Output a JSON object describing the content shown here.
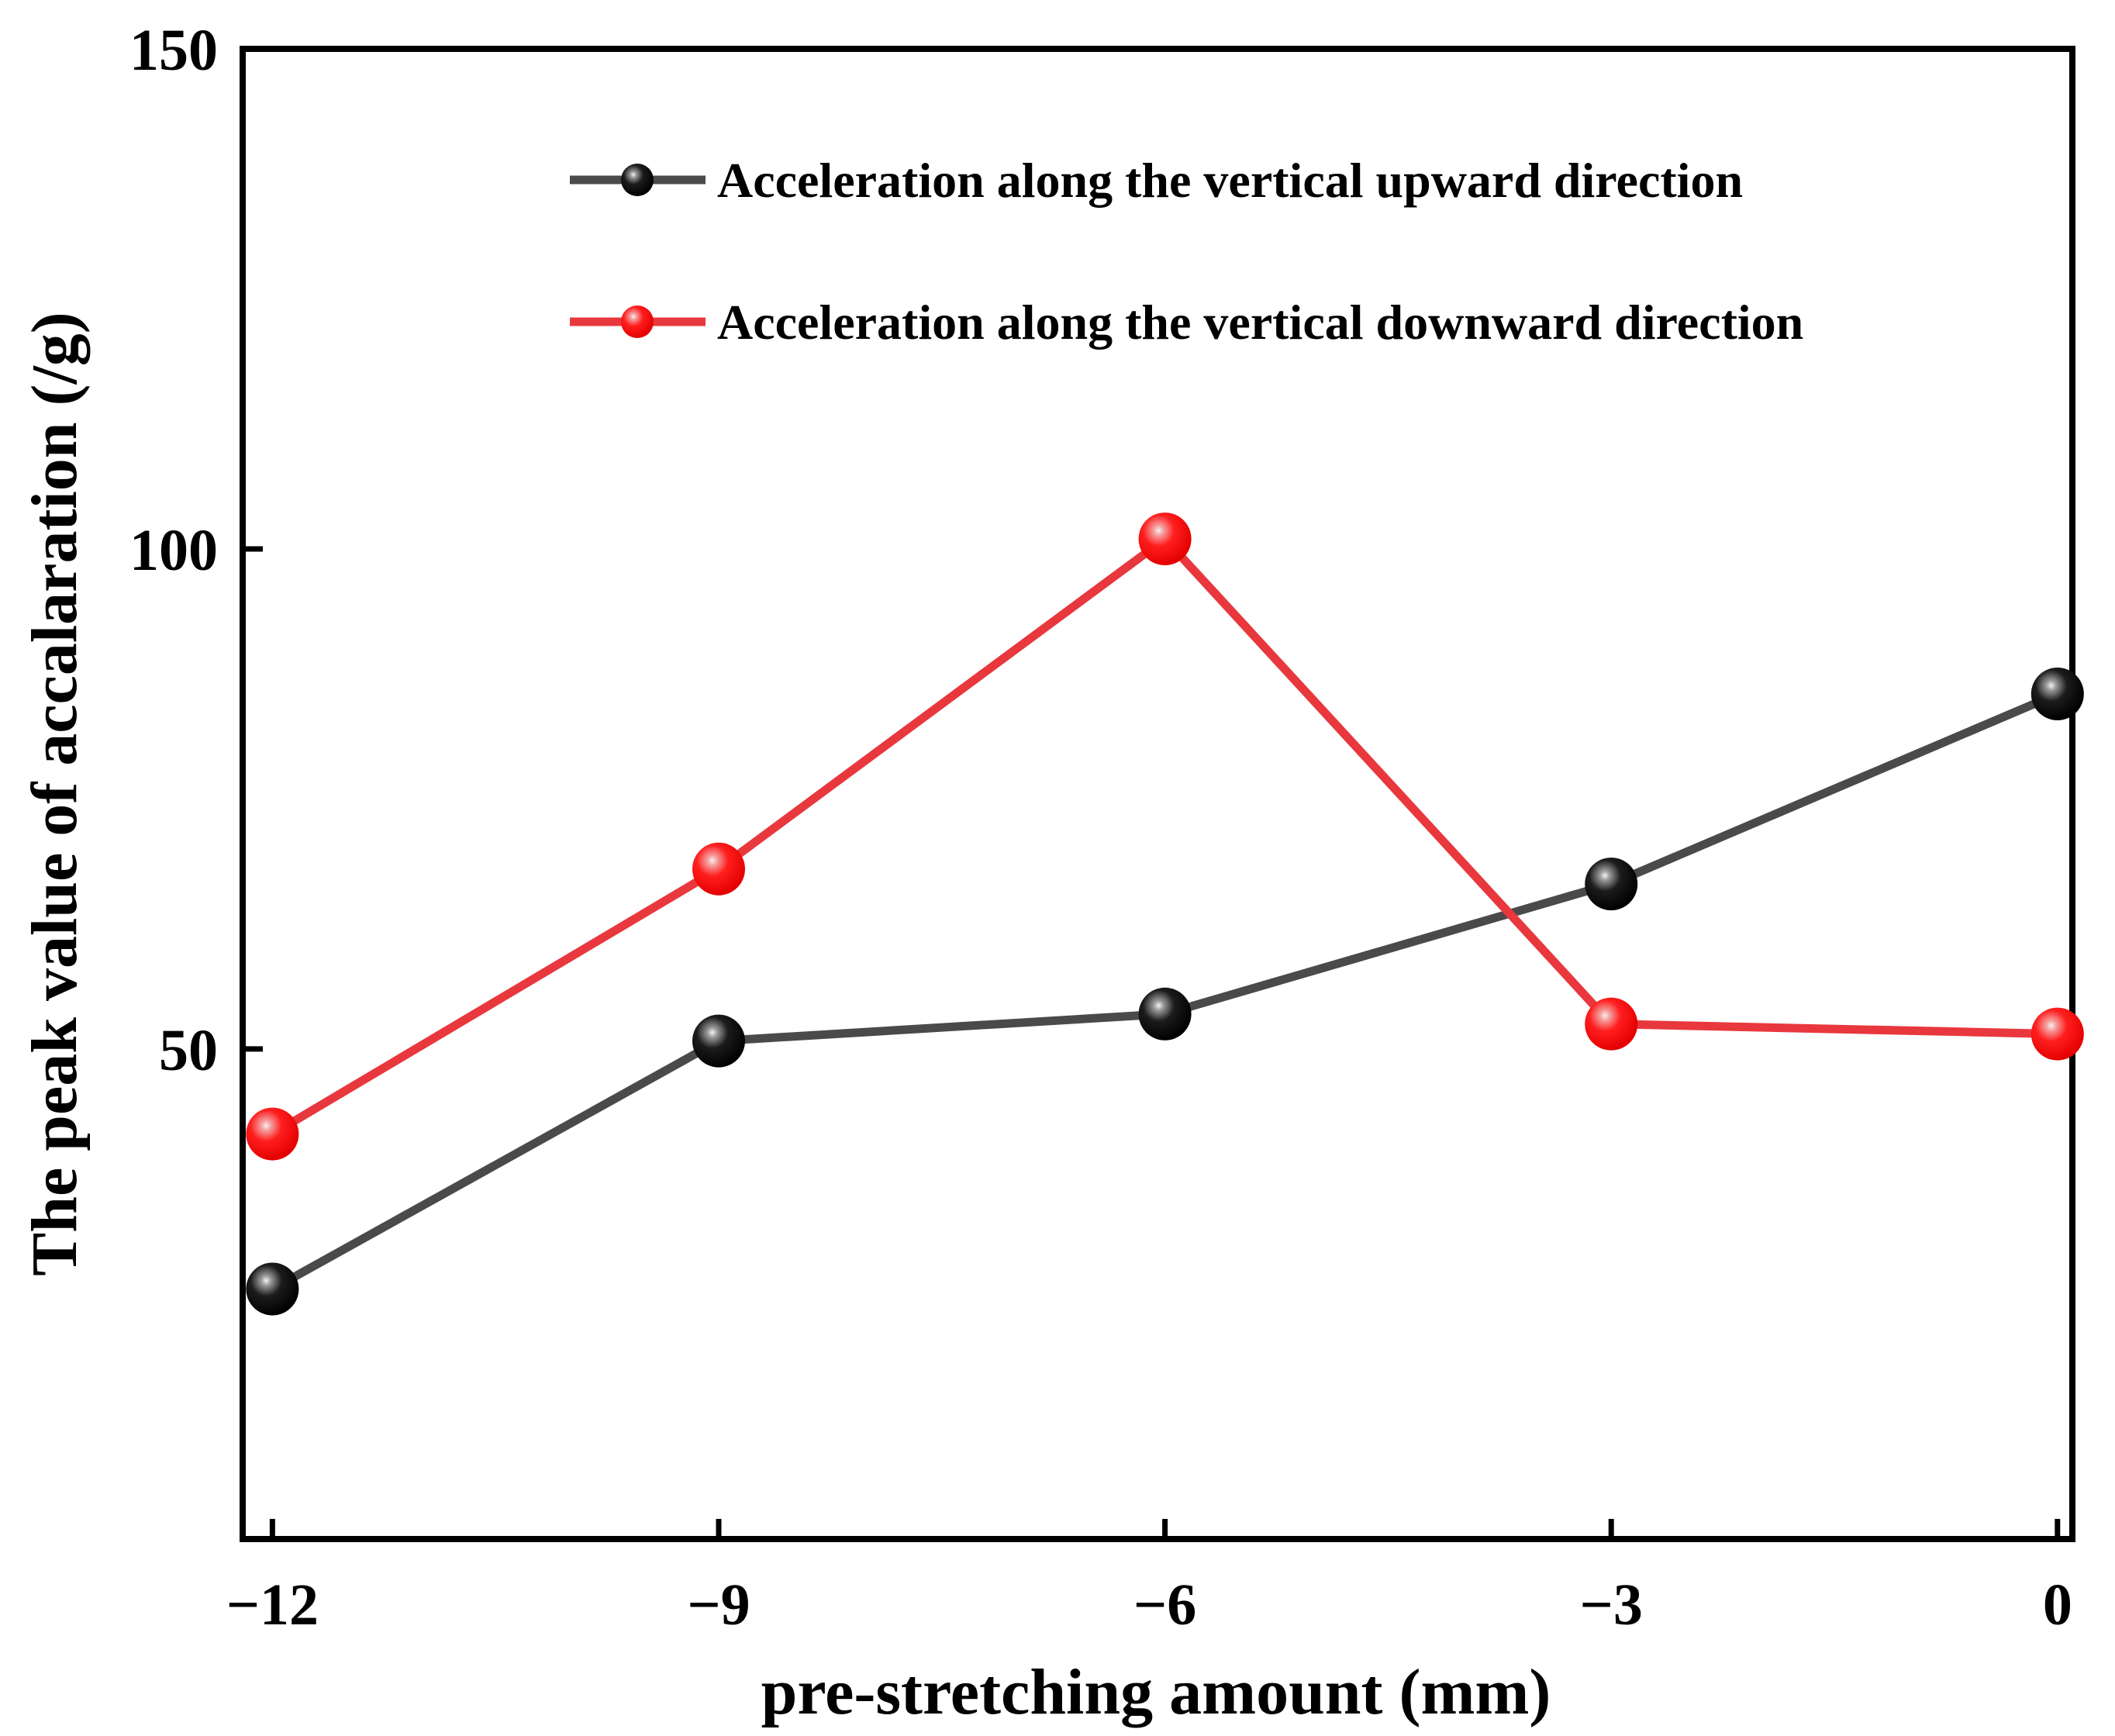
{
  "chart_data": {
    "type": "line",
    "title": "",
    "xlabel": "pre-stretching amount (mm)",
    "ylabel": "The peak value of accalaration (/g)",
    "x": [
      -12,
      -9,
      -6,
      -3,
      0
    ],
    "xlim": [
      -12.2,
      0.1
    ],
    "ylim": [
      1,
      150
    ],
    "x_ticks": [
      -12,
      -9,
      -6,
      -3,
      0
    ],
    "x_tick_labels": [
      "−12",
      "−9",
      "−6",
      "−3",
      "0"
    ],
    "y_ticks": [
      50,
      100,
      150
    ],
    "y_tick_labels": [
      "50",
      "100",
      "150"
    ],
    "grid": false,
    "legend_position": "top-right",
    "series": [
      {
        "name": "Acceleration along the vertical upward direction",
        "color": "#4a4a4a",
        "marker_color": "#000000",
        "values": [
          26.0,
          50.8,
          53.5,
          66.5,
          85.5
        ]
      },
      {
        "name": "Acceleration along the vertical downward direction",
        "color": "#e8383d",
        "marker_color": "#ff0000",
        "values": [
          41.5,
          68.0,
          101.0,
          52.5,
          51.5
        ]
      }
    ]
  }
}
